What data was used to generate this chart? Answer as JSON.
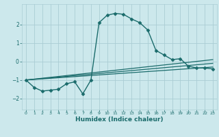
{
  "xlabel": "Humidex (Indice chaleur)",
  "ylabel": "",
  "bg_color": "#cce8ec",
  "grid_color": "#aacdd4",
  "line_color": "#1a6b6b",
  "xlim": [
    -0.5,
    23.5
  ],
  "ylim": [
    -2.6,
    3.1
  ],
  "yticks": [
    -2,
    -1,
    0,
    1,
    2
  ],
  "xtick_labels": [
    "0",
    "1",
    "2",
    "3",
    "4",
    "5",
    "6",
    "7",
    "8",
    "9",
    "10",
    "11",
    "12",
    "13",
    "14",
    "15",
    "16",
    "17",
    "18",
    "19",
    "20",
    "21",
    "22",
    "23"
  ],
  "xtick_positions": [
    0,
    1,
    2,
    3,
    4,
    5,
    6,
    7,
    8,
    9,
    10,
    11,
    12,
    13,
    14,
    15,
    16,
    17,
    18,
    19,
    20,
    21,
    22,
    23
  ],
  "series": [
    {
      "x": [
        0,
        1,
        2,
        3,
        4,
        5,
        6,
        7,
        8,
        9,
        10,
        11,
        12,
        13,
        14,
        15,
        16,
        17,
        18,
        19,
        20,
        21,
        22,
        23
      ],
      "y": [
        -1.0,
        -1.4,
        -1.6,
        -1.55,
        -1.5,
        -1.2,
        -1.1,
        -1.75,
        -1.0,
        2.1,
        2.5,
        2.6,
        2.55,
        2.3,
        2.1,
        1.7,
        0.6,
        0.35,
        0.1,
        0.15,
        -0.25,
        -0.35,
        -0.35,
        -0.4
      ],
      "marker": "D",
      "markersize": 2.5,
      "linestyle": "-",
      "linewidth": 1.0
    },
    {
      "x": [
        0,
        23
      ],
      "y": [
        -1.0,
        -0.3
      ],
      "marker": null,
      "markersize": 0,
      "linestyle": "-",
      "linewidth": 0.9
    },
    {
      "x": [
        0,
        23
      ],
      "y": [
        -1.0,
        -0.1
      ],
      "marker": null,
      "markersize": 0,
      "linestyle": "-",
      "linewidth": 0.9
    },
    {
      "x": [
        0,
        23
      ],
      "y": [
        -1.0,
        0.1
      ],
      "marker": null,
      "markersize": 0,
      "linestyle": "-",
      "linewidth": 0.9
    }
  ]
}
